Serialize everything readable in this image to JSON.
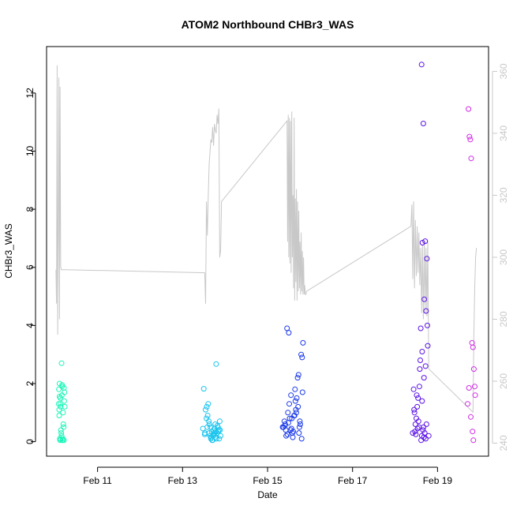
{
  "chart_data": {
    "type": "scatter",
    "title": "ATOM2 Northbound CHBr3_WAS",
    "xlabel": "Date",
    "ylabel": "CHBr3_WAS",
    "xlim": [
      "2009-02-09T19:12",
      "2009-02-20T04:48"
    ],
    "ylim": [
      -0.5,
      13.6
    ],
    "y2lim": [
      235.8,
      368
    ],
    "x_ticks": [
      {
        "value": "2009-02-11",
        "label": "Feb 11"
      },
      {
        "value": "2009-02-13",
        "label": "Feb 13"
      },
      {
        "value": "2009-02-15",
        "label": "Feb 15"
      },
      {
        "value": "2009-02-17",
        "label": "Feb 17"
      },
      {
        "value": "2009-02-19",
        "label": "Feb 19"
      }
    ],
    "y_ticks": [
      0,
      2,
      4,
      6,
      8,
      10,
      12
    ],
    "y2_ticks": [
      240,
      260,
      280,
      300,
      320,
      340,
      360
    ],
    "colors": {
      "line": "#c8c8c8",
      "axis": "#000000",
      "right_axis": "#c8c8c8",
      "legs": [
        "#19f5b8",
        "#19c4ee",
        "#1c3ae8",
        "#5b12e6",
        "#d02be6"
      ]
    },
    "series": [
      {
        "x": [
          "2009-02-10T02:00",
          "2009-02-10T02:10",
          "2009-02-10T02:20",
          "2009-02-10T02:30",
          "2009-02-10T02:40",
          "2009-02-10T02:50",
          "2009-02-10T03:00",
          "2009-02-10T03:10",
          "2009-02-10T03:20",
          "2009-02-10T03:30",
          "2009-02-10T03:40",
          "2009-02-10T03:50",
          "2009-02-10T04:00",
          "2009-02-10T04:10",
          "2009-02-10T04:20",
          "2009-02-10T04:30",
          "2009-02-10T04:40",
          "2009-02-10T04:50",
          "2009-02-10T05:00",
          "2009-02-10T05:10",
          "2009-02-10T05:20",
          "2009-02-10T05:30",
          "2009-02-10T02:20",
          "2009-02-10T03:00",
          "2009-02-10T03:40",
          "2009-02-10T04:20",
          "2009-02-10T05:00",
          "2009-02-10T02:30",
          "2009-02-10T03:10",
          "2009-02-10T04:00"
        ],
        "values": [
          1.3,
          1.8,
          1.1,
          2.0,
          0.1,
          0.05,
          1.5,
          1.2,
          0.4,
          0.3,
          2.7,
          1.6,
          1.9,
          0.05,
          0.1,
          1.0,
          0.6,
          0.5,
          0.05,
          1.4,
          1.7,
          1.2,
          0.9,
          1.3,
          0.2,
          0.05,
          1.85,
          1.55,
          0.08,
          1.95
        ]
      },
      {
        "x": [
          "2009-02-13T12:00",
          "2009-02-13T13:00",
          "2009-02-13T14:00",
          "2009-02-13T15:00",
          "2009-02-13T15:30",
          "2009-02-13T16:00",
          "2009-02-13T16:30",
          "2009-02-13T17:00",
          "2009-02-13T17:30",
          "2009-02-13T18:00",
          "2009-02-13T18:30",
          "2009-02-13T19:00",
          "2009-02-13T19:30",
          "2009-02-13T20:00",
          "2009-02-13T20:30",
          "2009-02-13T21:00",
          "2009-02-13T21:30",
          "2009-02-13T12:30",
          "2009-02-13T13:30",
          "2009-02-13T14:30",
          "2009-02-13T16:10",
          "2009-02-13T17:10",
          "2009-02-13T18:10",
          "2009-02-13T19:10",
          "2009-02-13T20:10",
          "2009-02-13T11:30",
          "2009-02-13T15:10",
          "2009-02-13T18:40",
          "2009-02-13T14:10",
          "2009-02-13T16:40",
          "2009-02-13T19:40",
          "2009-02-13T12:40",
          "2009-02-13T17:40",
          "2009-02-13T21:10",
          "2009-02-13T13:40",
          "2009-02-13T15:50",
          "2009-02-13T20:40",
          "2009-02-13T17:20",
          "2009-02-13T14:50",
          "2009-02-13T18:50"
        ],
        "values": [
          1.82,
          1.1,
          0.5,
          0.3,
          0.2,
          0.1,
          0.35,
          0.05,
          0.4,
          0.45,
          0.6,
          2.67,
          0.3,
          0.5,
          0.4,
          0.7,
          0.2,
          0.25,
          0.8,
          1.3,
          0.15,
          0.2,
          0.3,
          0.1,
          0.35,
          0.45,
          0.6,
          0.15,
          0.9,
          0.05,
          0.55,
          0.3,
          0.25,
          0.4,
          1.2,
          0.5,
          0.1,
          0.2,
          0.7,
          0.35
        ]
      },
      {
        "x": [
          "2009-02-15T09:00",
          "2009-02-15T10:00",
          "2009-02-15T11:00",
          "2009-02-15T12:00",
          "2009-02-15T13:00",
          "2009-02-15T14:00",
          "2009-02-15T15:00",
          "2009-02-15T16:00",
          "2009-02-15T17:00",
          "2009-02-15T18:00",
          "2009-02-15T19:00",
          "2009-02-15T20:00",
          "2009-02-15T09:30",
          "2009-02-15T10:30",
          "2009-02-15T11:30",
          "2009-02-15T12:30",
          "2009-02-15T13:30",
          "2009-02-15T14:30",
          "2009-02-15T15:30",
          "2009-02-15T16:30",
          "2009-02-15T17:30",
          "2009-02-15T18:30",
          "2009-02-15T19:30",
          "2009-02-15T08:30",
          "2009-02-15T10:15",
          "2009-02-15T12:15",
          "2009-02-15T14:15",
          "2009-02-15T16:15",
          "2009-02-15T18:15",
          "2009-02-15T11:15",
          "2009-02-15T13:15",
          "2009-02-15T15:15",
          "2009-02-15T17:15",
          "2009-02-15T19:15",
          "2009-02-15T09:45",
          "2009-02-15T11:45",
          "2009-02-15T13:45",
          "2009-02-15T15:45",
          "2009-02-15T17:45",
          "2009-02-15T19:45"
        ],
        "values": [
          0.5,
          0.6,
          3.9,
          3.75,
          0.4,
          0.3,
          0.9,
          1.1,
          2.2,
          0.5,
          3.0,
          3.4,
          0.7,
          0.2,
          1.0,
          0.8,
          0.45,
          0.35,
          1.8,
          1.5,
          2.3,
          0.6,
          2.9,
          0.5,
          0.4,
          1.3,
          0.15,
          1.0,
          0.7,
          0.25,
          1.6,
          0.9,
          1.2,
          0.1,
          0.55,
          0.65,
          0.8,
          1.4,
          0.3,
          1.7
        ]
      },
      {
        "x": [
          "2009-02-18T10:00",
          "2009-02-18T11:00",
          "2009-02-18T12:00",
          "2009-02-18T13:00",
          "2009-02-18T14:00",
          "2009-02-18T15:00",
          "2009-02-18T16:00",
          "2009-02-18T17:00",
          "2009-02-18T18:00",
          "2009-02-18T19:00",
          "2009-02-18T10:30",
          "2009-02-18T11:30",
          "2009-02-18T12:30",
          "2009-02-18T13:30",
          "2009-02-18T14:30",
          "2009-02-18T15:30",
          "2009-02-18T16:30",
          "2009-02-18T17:30",
          "2009-02-18T18:30",
          "2009-02-18T14:15",
          "2009-02-18T15:15",
          "2009-02-18T15:45",
          "2009-02-18T16:15",
          "2009-02-18T16:45",
          "2009-02-18T17:15",
          "2009-02-18T13:15",
          "2009-02-18T12:15",
          "2009-02-18T11:15",
          "2009-02-18T17:45",
          "2009-02-18T18:15",
          "2009-02-18T14:45",
          "2009-02-18T15:20",
          "2009-02-18T16:20",
          "2009-02-18T13:45",
          "2009-02-18T12:45",
          "2009-02-18T11:45",
          "2009-02-18T10:45",
          "2009-02-18T17:20",
          "2009-02-18T15:05",
          "2009-02-18T16:05"
        ],
        "values": [
          0.3,
          1.0,
          0.8,
          1.5,
          2.5,
          12.98,
          10.95,
          6.9,
          6.3,
          0.2,
          1.8,
          0.6,
          1.2,
          0.5,
          3.9,
          6.85,
          4.9,
          4.5,
          3.3,
          2.8,
          1.4,
          0.4,
          0.15,
          0.3,
          2.6,
          0.7,
          1.6,
          0.35,
          0.6,
          4.0,
          0.05,
          3.1,
          2.2,
          1.9,
          0.45,
          0.25,
          1.1,
          0.1,
          0.2,
          0.5
        ]
      },
      {
        "x": [
          "2009-02-19T17:00",
          "2009-02-19T17:30",
          "2009-02-19T18:00",
          "2009-02-19T18:30",
          "2009-02-19T19:00",
          "2009-02-19T19:30",
          "2009-02-19T20:00",
          "2009-02-19T20:30",
          "2009-02-19T21:00",
          "2009-02-19T17:45",
          "2009-02-19T18:45",
          "2009-02-19T19:45",
          "2009-02-19T20:15",
          "2009-02-19T21:15"
        ],
        "values": [
          1.3,
          11.45,
          10.5,
          10.4,
          9.75,
          3.4,
          3.25,
          2.5,
          1.9,
          1.85,
          0.85,
          0.35,
          0.05,
          1.6
        ]
      }
    ],
    "secondary_line": {
      "x": [
        "2009-02-10T00:30",
        "2009-02-10T00:50",
        "2009-02-10T01:10",
        "2009-02-10T01:30",
        "2009-02-10T01:50",
        "2009-02-10T02:10",
        "2009-02-10T02:30",
        "2009-02-10T02:50",
        "2009-02-10T03:10",
        "2009-02-10T03:30",
        "2009-02-10T03:50",
        "2009-02-10T04:10",
        "2009-02-10T04:30",
        "2009-02-10T04:50",
        "2009-02-10T05:10",
        "2009-02-10T05:30",
        "2009-02-10T05:50",
        "2009-02-13T12:30",
        "2009-02-13T13:00",
        "2009-02-13T13:30",
        "2009-02-13T14:00",
        "2009-02-13T14:30",
        "2009-02-13T15:00",
        "2009-02-13T15:30",
        "2009-02-13T16:00",
        "2009-02-13T16:30",
        "2009-02-13T17:00",
        "2009-02-13T17:30",
        "2009-02-13T18:00",
        "2009-02-13T18:30",
        "2009-02-13T19:00",
        "2009-02-13T19:30",
        "2009-02-13T20:00",
        "2009-02-13T20:30",
        "2009-02-13T21:00",
        "2009-02-13T21:30",
        "2009-02-13T22:00",
        "2009-02-15T11:00",
        "2009-02-15T11:20",
        "2009-02-15T11:40",
        "2009-02-15T12:00",
        "2009-02-15T12:20",
        "2009-02-15T12:40",
        "2009-02-15T13:00",
        "2009-02-15T13:20",
        "2009-02-15T13:40",
        "2009-02-15T14:00",
        "2009-02-15T14:20",
        "2009-02-15T14:40",
        "2009-02-15T15:00",
        "2009-02-15T15:20",
        "2009-02-15T15:40",
        "2009-02-15T16:00",
        "2009-02-15T16:20",
        "2009-02-15T16:40",
        "2009-02-15T17:00",
        "2009-02-15T17:20",
        "2009-02-15T17:40",
        "2009-02-15T18:00",
        "2009-02-15T18:20",
        "2009-02-15T18:40",
        "2009-02-15T19:00",
        "2009-02-15T19:20",
        "2009-02-15T19:40",
        "2009-02-15T20:00",
        "2009-02-15T20:20",
        "2009-02-15T20:40",
        "2009-02-15T21:00",
        "2009-02-15T21:20",
        "2009-02-15T21:40",
        "2009-02-15T22:00",
        "2009-02-18T09:00",
        "2009-02-18T09:30",
        "2009-02-18T10:00",
        "2009-02-18T10:30",
        "2009-02-18T11:00",
        "2009-02-18T11:30",
        "2009-02-18T12:00",
        "2009-02-18T12:30",
        "2009-02-18T13:00",
        "2009-02-18T13:30",
        "2009-02-18T14:00",
        "2009-02-18T14:30",
        "2009-02-18T15:00",
        "2009-02-18T15:30",
        "2009-02-18T16:00",
        "2009-02-18T16:30",
        "2009-02-18T17:00",
        "2009-02-18T17:30",
        "2009-02-18T18:00",
        "2009-02-18T18:30",
        "2009-02-18T19:00",
        "2009-02-19T20:00",
        "2009-02-19T20:30",
        "2009-02-19T21:00",
        "2009-02-19T21:30",
        "2009-02-19T22:00"
      ],
      "values": [
        296,
        285,
        362,
        275,
        310,
        358,
        280,
        355,
        297,
        296,
        296,
        296,
        296,
        296,
        296,
        296,
        296,
        295,
        285,
        318,
        307,
        319,
        330,
        334,
        338,
        337,
        342,
        336,
        343,
        341,
        340,
        346,
        343,
        348,
        300,
        302,
        318,
        344,
        305,
        346,
        300,
        345,
        298,
        344,
        295,
        347,
        300,
        320,
        290,
        345,
        286,
        319,
        292,
        322,
        286,
        318,
        289,
        315,
        290,
        305,
        288,
        308,
        289,
        302,
        288,
        300,
        288,
        291,
        288,
        288,
        289,
        310,
        317,
        293,
        318,
        290,
        312,
        294,
        310,
        295,
        308,
        291,
        303,
        282,
        304,
        280,
        305,
        282,
        303,
        281,
        305,
        264,
        250,
        275,
        290,
        300,
        303
      ]
    }
  }
}
